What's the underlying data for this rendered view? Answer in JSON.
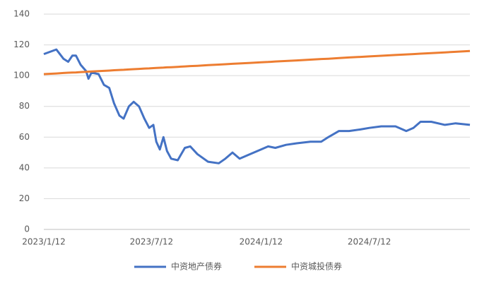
{
  "chart_data": {
    "type": "line",
    "x": [
      "2023/1/12",
      "2023/2/2",
      "2023/2/14",
      "2023/2/22",
      "2023/3/1",
      "2023/3/7",
      "2023/3/15",
      "2023/3/24",
      "2023/3/28",
      "2023/4/2",
      "2023/4/14",
      "2023/4/23",
      "2023/5/2",
      "2023/5/10",
      "2023/5/19",
      "2023/5/26",
      "2023/6/4",
      "2023/6/12",
      "2023/6/21",
      "2023/6/30",
      "2023/7/8",
      "2023/7/15",
      "2023/7/20",
      "2023/7/26",
      "2023/8/1",
      "2023/8/7",
      "2023/8/14",
      "2023/8/25",
      "2023/9/6",
      "2023/9/15",
      "2023/9/27",
      "2023/10/15",
      "2023/11/2",
      "2023/11/13",
      "2023/11/25",
      "2023/12/7",
      "2023/12/25",
      "2024/1/12",
      "2024/1/24",
      "2024/2/5",
      "2024/2/23",
      "2024/3/12",
      "2024/4/4",
      "2024/4/22",
      "2024/5/4",
      "2024/5/22",
      "2024/6/8",
      "2024/6/27",
      "2024/7/12",
      "2024/8/1",
      "2024/8/25",
      "2024/9/12",
      "2024/9/24",
      "2024/10/6",
      "2024/10/24",
      "2024/11/16",
      "2024/12/4",
      "2024/12/28"
    ],
    "series": [
      {
        "name": "中资地产债券",
        "color": "#4472c4",
        "values": [
          114,
          117,
          111,
          109,
          113,
          113,
          107,
          103,
          98,
          102,
          101,
          94,
          92,
          82,
          74,
          72,
          80,
          83,
          80,
          72,
          66,
          68,
          57,
          52,
          60,
          51,
          46,
          45,
          53,
          54,
          49,
          44,
          43,
          46,
          50,
          46,
          49,
          52,
          54,
          53,
          55,
          56,
          57,
          57,
          60,
          64,
          64,
          65,
          66,
          67,
          67,
          64,
          66,
          70,
          70,
          68,
          69,
          68
        ]
      },
      {
        "name": "中资城投债券",
        "color": "#ed7d31",
        "values": [
          101.0,
          101.4,
          101.7,
          101.9,
          102.0,
          102.1,
          102.3,
          102.5,
          102.6,
          102.7,
          102.9,
          103.1,
          103.3,
          103.5,
          103.7,
          103.8,
          104.0,
          104.2,
          104.4,
          104.6,
          104.7,
          104.9,
          105.0,
          105.1,
          105.2,
          105.4,
          105.5,
          105.7,
          106.0,
          106.2,
          106.4,
          106.8,
          107.2,
          107.4,
          107.7,
          107.9,
          108.3,
          108.7,
          108.9,
          109.2,
          109.5,
          109.9,
          110.4,
          110.8,
          111.0,
          111.4,
          111.8,
          112.2,
          112.5,
          112.9,
          113.4,
          113.8,
          114.0,
          114.3,
          114.6,
          115.1,
          115.5,
          116.0
        ]
      }
    ],
    "xlim": [
      "2023/1/12",
      "2024/12/28"
    ],
    "xticks": [
      "2023/1/12",
      "2023/7/12",
      "2024/1/12",
      "2024/7/12"
    ],
    "ylim": [
      0,
      140
    ],
    "yticks": [
      0,
      20,
      40,
      60,
      80,
      100,
      120,
      140
    ],
    "grid": true
  }
}
